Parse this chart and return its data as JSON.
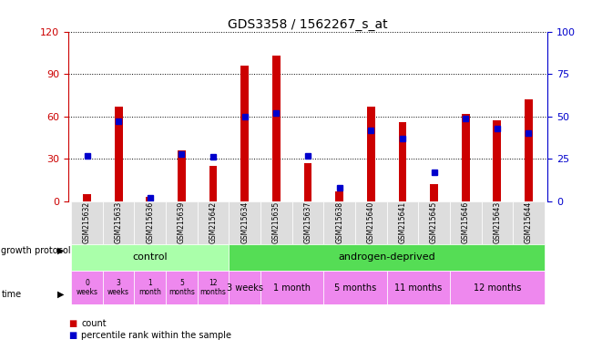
{
  "title": "GDS3358 / 1562267_s_at",
  "samples": [
    "GSM215632",
    "GSM215633",
    "GSM215636",
    "GSM215639",
    "GSM215642",
    "GSM215634",
    "GSM215635",
    "GSM215637",
    "GSM215638",
    "GSM215640",
    "GSM215641",
    "GSM215645",
    "GSM215646",
    "GSM215643",
    "GSM215644"
  ],
  "counts": [
    5,
    67,
    3,
    36,
    25,
    96,
    103,
    27,
    7,
    67,
    56,
    12,
    62,
    57,
    72
  ],
  "percentiles": [
    27,
    47,
    2,
    28,
    26,
    50,
    52,
    27,
    8,
    42,
    37,
    17,
    49,
    43,
    40
  ],
  "ylim_left": [
    0,
    120
  ],
  "ylim_right": [
    0,
    100
  ],
  "yticks_left": [
    0,
    30,
    60,
    90,
    120
  ],
  "yticks_right": [
    0,
    25,
    50,
    75,
    100
  ],
  "bar_color": "#cc0000",
  "dot_color": "#0000cc",
  "protocol_control_color": "#aaffaa",
  "protocol_androgen_color": "#55dd55",
  "time_color": "#ee88ee",
  "time_labels_control": [
    "0\nweeks",
    "3\nweeks",
    "1\nmonth",
    "5\nmonths",
    "12\nmonths"
  ],
  "time_labels_androgen": [
    "3 weeks",
    "1 month",
    "5 months",
    "11 months",
    "12 months"
  ],
  "bg_color": "#ffffff",
  "tick_label_color_left": "#cc0000",
  "tick_label_color_right": "#0000cc",
  "xticklabel_bg": "#dddddd",
  "bar_width": 0.25
}
